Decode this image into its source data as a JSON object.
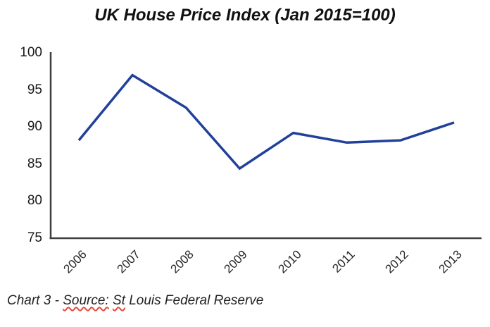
{
  "chart_data": {
    "type": "line",
    "title": "UK House Price Index (Jan 2015=100)",
    "categories": [
      "2006",
      "2007",
      "2008",
      "2009",
      "2010",
      "2011",
      "2012",
      "2013"
    ],
    "values": [
      88.2,
      97.0,
      92.6,
      84.4,
      89.2,
      87.9,
      88.2,
      90.6
    ],
    "xlabel": "",
    "ylabel": "",
    "ylim": [
      75,
      100
    ],
    "yticks": [
      75,
      80,
      85,
      90,
      95,
      100
    ],
    "grid": false,
    "legend": false,
    "line_color": "#21409a",
    "axis_color": "#3f3f3f",
    "tick_text_color": "#1a1a1a"
  },
  "caption": {
    "full_text": "Chart 3 - Source: St Louis Federal Reserve",
    "squiggle_color": "#e5493a",
    "segments": [
      {
        "text": "Chart 3 - ",
        "squiggle": false
      },
      {
        "text": "Source:",
        "squiggle": true
      },
      {
        "text": " ",
        "squiggle": false
      },
      {
        "text": "St",
        "squiggle": true
      },
      {
        "text": " Louis Federal Reserve",
        "squiggle": false
      }
    ]
  }
}
